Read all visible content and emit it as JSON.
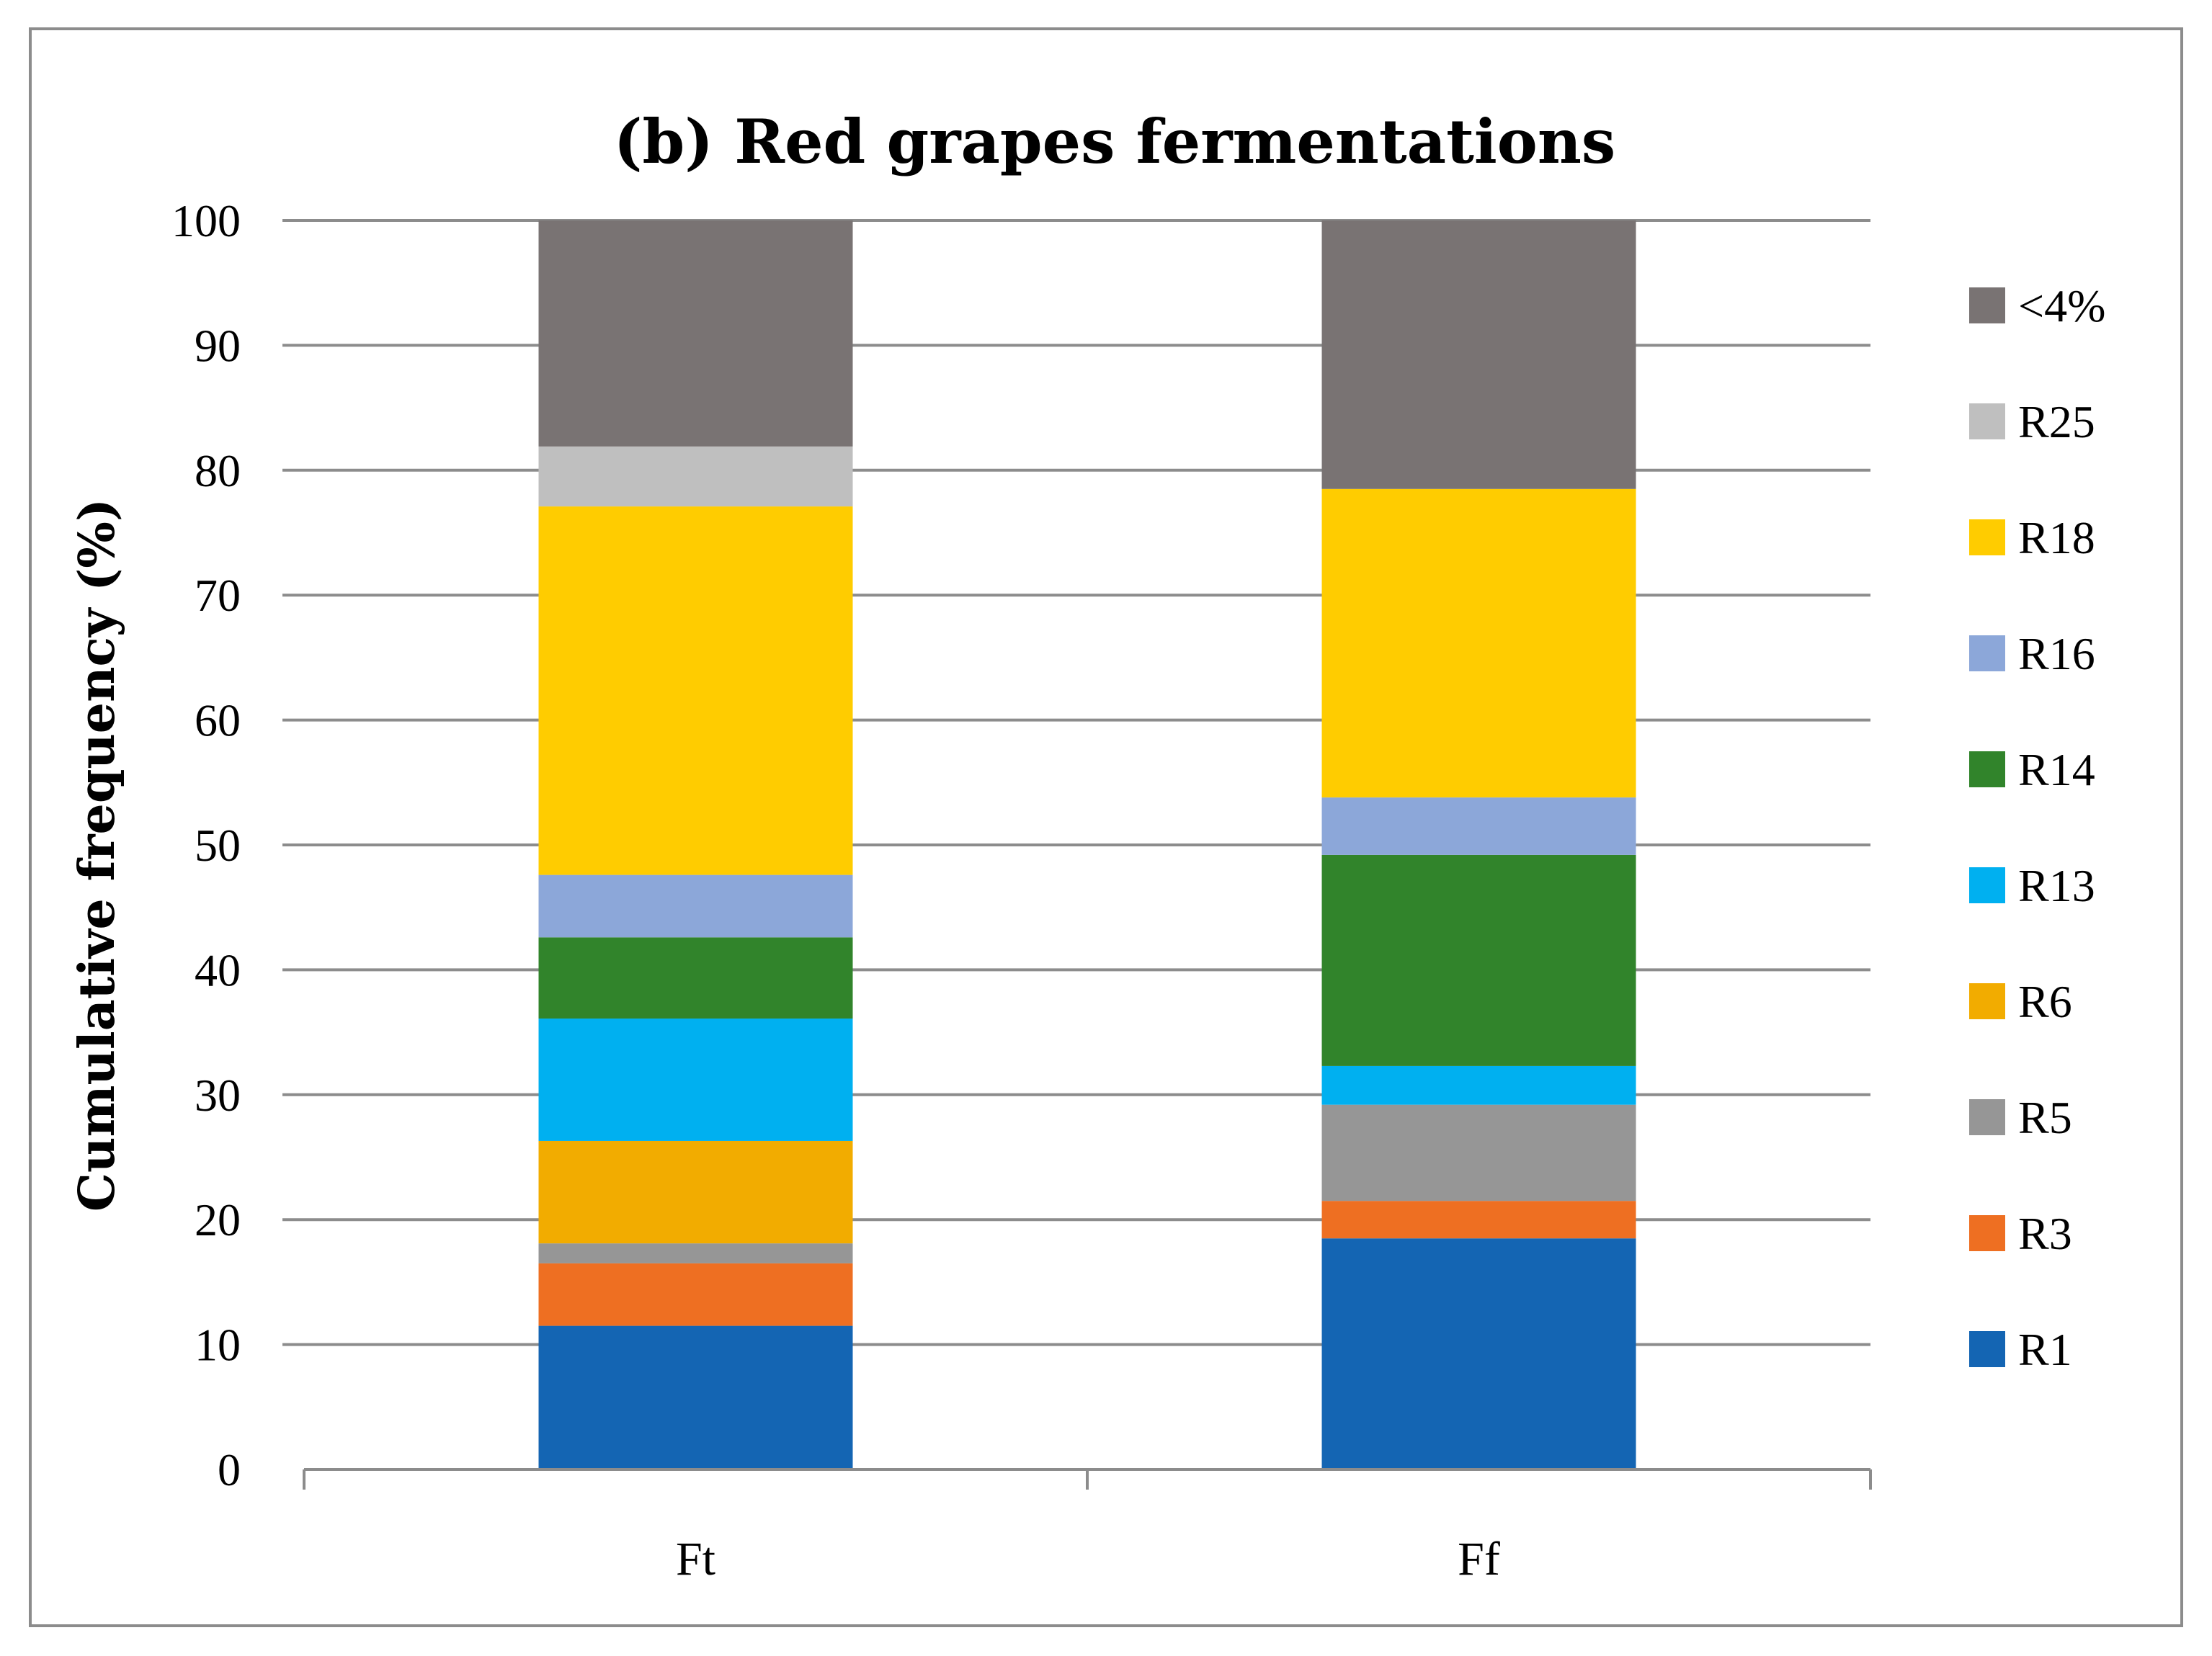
{
  "chart_data": {
    "type": "bar",
    "stacked": true,
    "title": "(b) Red grapes fermentations",
    "xlabel": "",
    "ylabel": "Cumulative frequency (%)",
    "ylim": [
      0,
      100
    ],
    "yticks": [
      0,
      10,
      20,
      30,
      40,
      50,
      60,
      70,
      80,
      90,
      100
    ],
    "grid": true,
    "legend_position": "right",
    "categories": [
      "Ft",
      "Ff"
    ],
    "series": [
      {
        "name": "R1",
        "color": "#1465b3",
        "values": [
          11.5,
          18.5
        ]
      },
      {
        "name": "R3",
        "color": "#ee6f22",
        "values": [
          5.0,
          3.0
        ]
      },
      {
        "name": "R5",
        "color": "#969696",
        "values": [
          1.6,
          7.7
        ]
      },
      {
        "name": "R6",
        "color": "#f2ac00",
        "values": [
          8.2,
          0.0
        ]
      },
      {
        "name": "R13",
        "color": "#00b0f0",
        "values": [
          9.8,
          3.1
        ]
      },
      {
        "name": "R14",
        "color": "#31842b",
        "values": [
          6.5,
          16.9
        ]
      },
      {
        "name": "R16",
        "color": "#8ca7d9",
        "values": [
          5.0,
          4.6
        ]
      },
      {
        "name": "R18",
        "color": "#ffcc00",
        "values": [
          29.5,
          24.7
        ]
      },
      {
        "name": "R25",
        "color": "#bfbfbf",
        "values": [
          4.8,
          0.0
        ]
      },
      {
        "name": "<4%",
        "color": "#797373",
        "values": [
          18.1,
          21.5
        ]
      }
    ]
  }
}
